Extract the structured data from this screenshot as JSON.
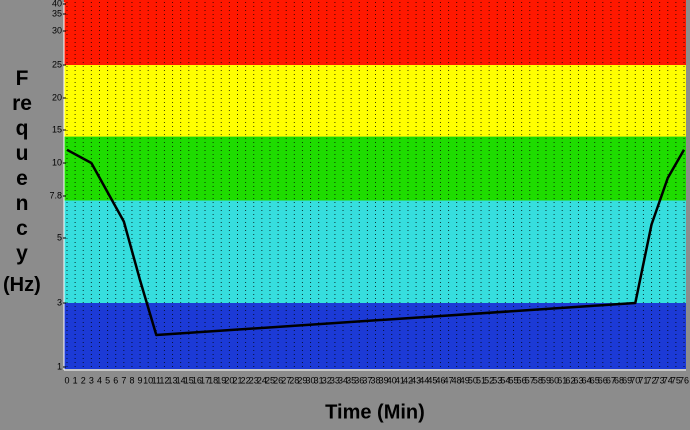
{
  "chart_data": {
    "type": "line",
    "x_label": "Time (Min)",
    "y_label": "Frequency",
    "y_unit": "(Hz)",
    "xlim": [
      0,
      76
    ],
    "xticks": [
      0,
      1,
      2,
      3,
      4,
      5,
      6,
      7,
      8,
      9,
      10,
      11,
      12,
      13,
      14,
      15,
      16,
      17,
      18,
      19,
      20,
      21,
      22,
      23,
      24,
      25,
      26,
      27,
      28,
      29,
      30,
      31,
      32,
      33,
      34,
      35,
      36,
      37,
      38,
      39,
      40,
      41,
      42,
      43,
      44,
      45,
      46,
      47,
      48,
      49,
      50,
      51,
      52,
      53,
      54,
      55,
      56,
      57,
      58,
      59,
      60,
      61,
      62,
      63,
      64,
      65,
      66,
      67,
      68,
      69,
      70,
      71,
      72,
      73,
      74,
      75,
      76
    ],
    "ylim": [
      1,
      40
    ],
    "yticks": [
      1,
      3,
      5,
      7.8,
      10,
      15,
      20,
      25,
      30,
      35,
      40
    ],
    "grid": true,
    "bands": [
      {
        "from": 1,
        "to": 3,
        "color": "#1c3ad6"
      },
      {
        "from": 3,
        "to": 7.5,
        "color": "#36dede"
      },
      {
        "from": 7.5,
        "to": 14,
        "color": "#1fdc00"
      },
      {
        "from": 14,
        "to": 25,
        "color": "#ffff00"
      },
      {
        "from": 25,
        "to": 40,
        "color": "#ff1800"
      }
    ],
    "series": [
      {
        "name": "Frequency",
        "color": "#000000",
        "x": [
          0,
          3,
          7,
          9,
          11,
          70,
          72,
          74,
          76
        ],
        "values": [
          12,
          10,
          6.1,
          3.7,
          2,
          3,
          5.9,
          9,
          12
        ]
      }
    ]
  }
}
